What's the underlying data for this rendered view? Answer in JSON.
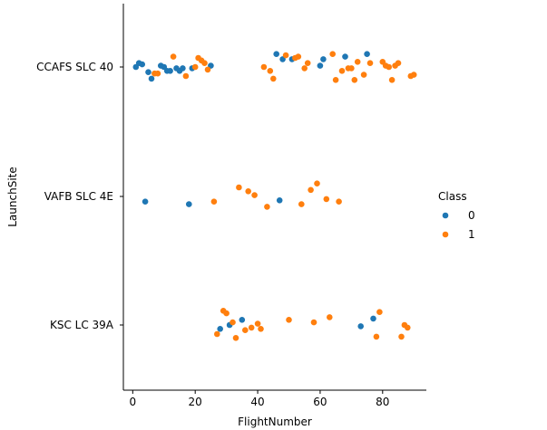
{
  "chart_data": {
    "type": "scatter",
    "xlabel": "FlightNumber",
    "ylabel": "LaunchSite",
    "categories": [
      "CCAFS SLC 40",
      "VAFB SLC 4E",
      "KSC LC 39A"
    ],
    "xlim": [
      -3,
      94
    ],
    "xticks": [
      0,
      20,
      40,
      60,
      80
    ],
    "legend": {
      "title": "Class",
      "placement": "right",
      "entries": [
        "0",
        "1"
      ]
    },
    "colors": {
      "0": "#1f77b4",
      "1": "#ff7f0e"
    },
    "series": [
      {
        "name": "0",
        "points": [
          {
            "x": 1,
            "y": "CCAFS SLC 40",
            "j": 0.0
          },
          {
            "x": 2,
            "y": "CCAFS SLC 40",
            "j": 0.03
          },
          {
            "x": 3,
            "y": "CCAFS SLC 40",
            "j": 0.02
          },
          {
            "x": 5,
            "y": "CCAFS SLC 40",
            "j": -0.04
          },
          {
            "x": 6,
            "y": "CCAFS SLC 40",
            "j": -0.09
          },
          {
            "x": 9,
            "y": "CCAFS SLC 40",
            "j": 0.01
          },
          {
            "x": 10,
            "y": "CCAFS SLC 40",
            "j": 0.0
          },
          {
            "x": 11,
            "y": "CCAFS SLC 40",
            "j": -0.03
          },
          {
            "x": 12,
            "y": "CCAFS SLC 40",
            "j": -0.03
          },
          {
            "x": 14,
            "y": "CCAFS SLC 40",
            "j": -0.01
          },
          {
            "x": 15,
            "y": "CCAFS SLC 40",
            "j": -0.03
          },
          {
            "x": 16,
            "y": "CCAFS SLC 40",
            "j": -0.01
          },
          {
            "x": 19,
            "y": "CCAFS SLC 40",
            "j": -0.01
          },
          {
            "x": 25,
            "y": "CCAFS SLC 40",
            "j": 0.01
          },
          {
            "x": 46,
            "y": "CCAFS SLC 40",
            "j": 0.1
          },
          {
            "x": 48,
            "y": "CCAFS SLC 40",
            "j": 0.06
          },
          {
            "x": 51,
            "y": "CCAFS SLC 40",
            "j": 0.06
          },
          {
            "x": 60,
            "y": "CCAFS SLC 40",
            "j": 0.01
          },
          {
            "x": 61,
            "y": "CCAFS SLC 40",
            "j": 0.06
          },
          {
            "x": 68,
            "y": "CCAFS SLC 40",
            "j": 0.08
          },
          {
            "x": 75,
            "y": "CCAFS SLC 40",
            "j": 0.1
          },
          {
            "x": 4,
            "y": "VAFB SLC 4E",
            "j": -0.04
          },
          {
            "x": 18,
            "y": "VAFB SLC 4E",
            "j": -0.06
          },
          {
            "x": 47,
            "y": "VAFB SLC 4E",
            "j": -0.03
          },
          {
            "x": 28,
            "y": "KSC LC 39A",
            "j": -0.03
          },
          {
            "x": 31,
            "y": "KSC LC 39A",
            "j": 0.0
          },
          {
            "x": 35,
            "y": "KSC LC 39A",
            "j": 0.04
          },
          {
            "x": 73,
            "y": "KSC LC 39A",
            "j": -0.01
          },
          {
            "x": 77,
            "y": "KSC LC 39A",
            "j": 0.05
          }
        ]
      },
      {
        "name": "1",
        "points": [
          {
            "x": 7,
            "y": "CCAFS SLC 40",
            "j": -0.05
          },
          {
            "x": 8,
            "y": "CCAFS SLC 40",
            "j": -0.05
          },
          {
            "x": 13,
            "y": "CCAFS SLC 40",
            "j": 0.08
          },
          {
            "x": 17,
            "y": "CCAFS SLC 40",
            "j": -0.07
          },
          {
            "x": 20,
            "y": "CCAFS SLC 40",
            "j": 0.0
          },
          {
            "x": 21,
            "y": "CCAFS SLC 40",
            "j": 0.07
          },
          {
            "x": 22,
            "y": "CCAFS SLC 40",
            "j": 0.05
          },
          {
            "x": 23,
            "y": "CCAFS SLC 40",
            "j": 0.03
          },
          {
            "x": 24,
            "y": "CCAFS SLC 40",
            "j": -0.02
          },
          {
            "x": 42,
            "y": "CCAFS SLC 40",
            "j": 0.0
          },
          {
            "x": 44,
            "y": "CCAFS SLC 40",
            "j": -0.03
          },
          {
            "x": 45,
            "y": "CCAFS SLC 40",
            "j": -0.09
          },
          {
            "x": 49,
            "y": "CCAFS SLC 40",
            "j": 0.09
          },
          {
            "x": 52,
            "y": "CCAFS SLC 40",
            "j": 0.07
          },
          {
            "x": 53,
            "y": "CCAFS SLC 40",
            "j": 0.08
          },
          {
            "x": 55,
            "y": "CCAFS SLC 40",
            "j": -0.01
          },
          {
            "x": 56,
            "y": "CCAFS SLC 40",
            "j": 0.03
          },
          {
            "x": 64,
            "y": "CCAFS SLC 40",
            "j": 0.1
          },
          {
            "x": 65,
            "y": "CCAFS SLC 40",
            "j": -0.1
          },
          {
            "x": 67,
            "y": "CCAFS SLC 40",
            "j": -0.03
          },
          {
            "x": 69,
            "y": "CCAFS SLC 40",
            "j": -0.01
          },
          {
            "x": 70,
            "y": "CCAFS SLC 40",
            "j": -0.01
          },
          {
            "x": 71,
            "y": "CCAFS SLC 40",
            "j": -0.1
          },
          {
            "x": 72,
            "y": "CCAFS SLC 40",
            "j": 0.04
          },
          {
            "x": 74,
            "y": "CCAFS SLC 40",
            "j": -0.06
          },
          {
            "x": 76,
            "y": "CCAFS SLC 40",
            "j": 0.03
          },
          {
            "x": 80,
            "y": "CCAFS SLC 40",
            "j": 0.04
          },
          {
            "x": 81,
            "y": "CCAFS SLC 40",
            "j": 0.01
          },
          {
            "x": 82,
            "y": "CCAFS SLC 40",
            "j": 0.0
          },
          {
            "x": 83,
            "y": "CCAFS SLC 40",
            "j": -0.1
          },
          {
            "x": 84,
            "y": "CCAFS SLC 40",
            "j": 0.01
          },
          {
            "x": 85,
            "y": "CCAFS SLC 40",
            "j": 0.03
          },
          {
            "x": 89,
            "y": "CCAFS SLC 40",
            "j": -0.07
          },
          {
            "x": 90,
            "y": "CCAFS SLC 40",
            "j": -0.06
          },
          {
            "x": 26,
            "y": "VAFB SLC 4E",
            "j": -0.04
          },
          {
            "x": 34,
            "y": "VAFB SLC 4E",
            "j": 0.07
          },
          {
            "x": 37,
            "y": "VAFB SLC 4E",
            "j": 0.04
          },
          {
            "x": 39,
            "y": "VAFB SLC 4E",
            "j": 0.01
          },
          {
            "x": 43,
            "y": "VAFB SLC 4E",
            "j": -0.08
          },
          {
            "x": 54,
            "y": "VAFB SLC 4E",
            "j": -0.06
          },
          {
            "x": 57,
            "y": "VAFB SLC 4E",
            "j": 0.05
          },
          {
            "x": 59,
            "y": "VAFB SLC 4E",
            "j": 0.1
          },
          {
            "x": 62,
            "y": "VAFB SLC 4E",
            "j": -0.02
          },
          {
            "x": 66,
            "y": "VAFB SLC 4E",
            "j": -0.04
          },
          {
            "x": 27,
            "y": "KSC LC 39A",
            "j": -0.07
          },
          {
            "x": 29,
            "y": "KSC LC 39A",
            "j": 0.11
          },
          {
            "x": 30,
            "y": "KSC LC 39A",
            "j": 0.09
          },
          {
            "x": 32,
            "y": "KSC LC 39A",
            "j": 0.02
          },
          {
            "x": 33,
            "y": "KSC LC 39A",
            "j": -0.1
          },
          {
            "x": 36,
            "y": "KSC LC 39A",
            "j": -0.04
          },
          {
            "x": 38,
            "y": "KSC LC 39A",
            "j": -0.02
          },
          {
            "x": 40,
            "y": "KSC LC 39A",
            "j": 0.01
          },
          {
            "x": 41,
            "y": "KSC LC 39A",
            "j": -0.03
          },
          {
            "x": 50,
            "y": "KSC LC 39A",
            "j": 0.04
          },
          {
            "x": 58,
            "y": "KSC LC 39A",
            "j": 0.02
          },
          {
            "x": 63,
            "y": "KSC LC 39A",
            "j": 0.06
          },
          {
            "x": 78,
            "y": "KSC LC 39A",
            "j": -0.09
          },
          {
            "x": 79,
            "y": "KSC LC 39A",
            "j": 0.1
          },
          {
            "x": 86,
            "y": "KSC LC 39A",
            "j": -0.09
          },
          {
            "x": 87,
            "y": "KSC LC 39A",
            "j": 0.0
          },
          {
            "x": 88,
            "y": "KSC LC 39A",
            "j": -0.02
          }
        ]
      }
    ]
  }
}
